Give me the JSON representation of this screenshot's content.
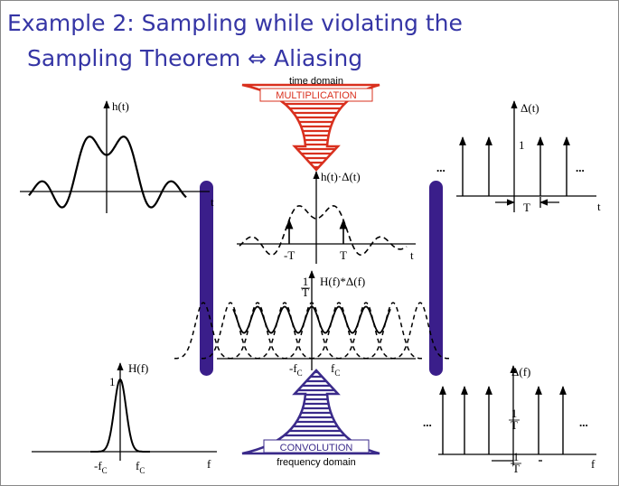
{
  "title": [
    "Example 2: Sampling while violating the",
    "Sampling Theorem ⇔ Aliasing"
  ],
  "arrows": {
    "top": {
      "caption": "time domain",
      "label": "MULTIPLICATION"
    },
    "bottom": {
      "label": "CONVOLUTION",
      "caption": "frequency domain"
    }
  },
  "panels": {
    "h_t": {
      "ylabel": "h(t)",
      "xlabel": "t"
    },
    "delta_t": {
      "ylabel": "Δ(t)",
      "xlabel": "t",
      "height": "1",
      "period": "T",
      "ellipsis_left": "...",
      "ellipsis_right": "..."
    },
    "product": {
      "ylabel": "h(t)·Δ(t)",
      "xlabel": "t",
      "tick_left": "-T",
      "tick_right": "T"
    },
    "convolution": {
      "ylabel": "H(f)*Δ(f)",
      "height": {
        "num": "1",
        "den": "T"
      },
      "tick_left": {
        "text": "-f",
        "sub": "C"
      },
      "tick_right": {
        "text": "f",
        "sub": "C"
      }
    },
    "H_f": {
      "ylabel": "H(f)",
      "xlabel": "f",
      "height": "1",
      "tick_left": {
        "text": "-f",
        "sub": "C"
      },
      "tick_right": {
        "text": "f",
        "sub": "C"
      }
    },
    "delta_f": {
      "ylabel": "Δ(f)",
      "xlabel": "f",
      "height": {
        "num": "1",
        "den": "T"
      },
      "period": {
        "num": "1",
        "den": "T"
      },
      "ellipsis_left": "...",
      "ellipsis_right": "..."
    }
  }
}
